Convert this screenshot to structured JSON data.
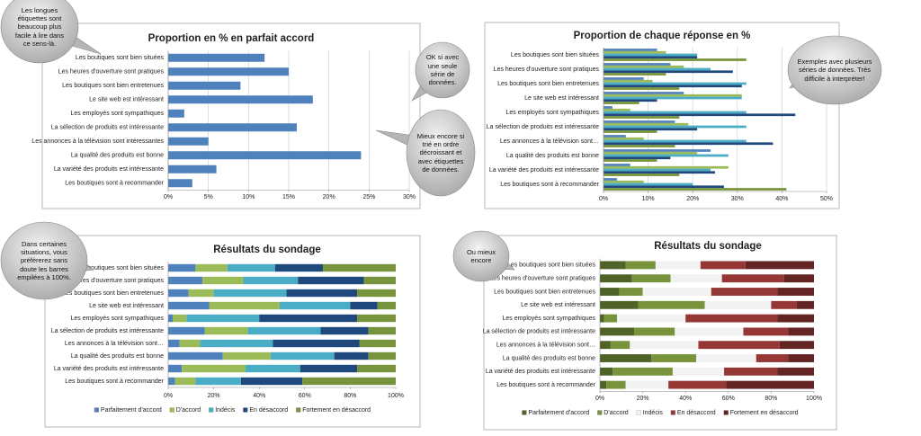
{
  "chart_data": [
    {
      "type": "bar",
      "title": "Proportion en % en parfait accord",
      "categories": [
        "Les boutiques sont bien situées",
        "Les heures d'ouverture sont pratiques",
        "Les boutiques sont bien entretenues",
        "Le site web est intéressant",
        "Les employés sont sympathiques",
        "La sélection de produits est intéressante",
        "Les annonces à la télévision sont intéressantes",
        "La qualité des produits est bonne",
        "La variété des produits est intéressante",
        "Les boutiques sont à recommander"
      ],
      "values": [
        12,
        15,
        9,
        18,
        2,
        16,
        5,
        24,
        6,
        3
      ],
      "color": "#4f81bd",
      "xlim": [
        0,
        30
      ],
      "xticks": [
        {
          "value": 0,
          "label": "0%"
        },
        {
          "value": 5,
          "label": "5%"
        },
        {
          "value": 10,
          "label": "10%"
        },
        {
          "value": 15,
          "label": "15%"
        },
        {
          "value": 20,
          "label": "20%"
        },
        {
          "value": 25,
          "label": "25%"
        },
        {
          "value": 30,
          "label": "30%"
        }
      ],
      "grid": true,
      "annotations": [
        "Les longues étiquettes sont beaucoup plus facile à lire dans ce sens-là.",
        "OK si avec une seule série de données.",
        "Mieux encore si trié en ordre décroissant et avec étiquettes de données."
      ]
    },
    {
      "type": "grouped_bar",
      "title": "Proportion de chaque réponse en %",
      "categories": [
        "Les boutiques sont bien situées",
        "Les heures d'ouverture sont pratiques",
        "Les boutiques sont bien entretenues",
        "Le site web est intéressant",
        "Les employés sont sympathiques",
        "La sélection de produits est intéressante",
        "Les annonces à la télévision sont…",
        "La qualité des produits est bonne",
        "La variété des produits est intéressante",
        "Les boutiques sont à recommander"
      ],
      "series": [
        {
          "name": "Parfaitement d'accord",
          "color": "#4f81bd",
          "values": [
            12,
            15,
            9,
            18,
            2,
            16,
            5,
            24,
            6,
            3
          ]
        },
        {
          "name": "D'accord",
          "color": "#9bbb59",
          "values": [
            14,
            18,
            11,
            31,
            6,
            19,
            9,
            21,
            28,
            9
          ]
        },
        {
          "name": "Indécis",
          "color": "#4bacc6",
          "values": [
            21,
            24,
            32,
            31,
            32,
            32,
            32,
            28,
            24,
            20
          ]
        },
        {
          "name": "En désaccord",
          "color": "#1f497d",
          "values": [
            21,
            29,
            31,
            12,
            43,
            21,
            38,
            15,
            25,
            27
          ]
        },
        {
          "name": "Fortement en désaccord",
          "color": "#77933c",
          "values": [
            32,
            14,
            17,
            8,
            17,
            12,
            16,
            12,
            17,
            41
          ]
        }
      ],
      "xlim": [
        0,
        50
      ],
      "xticks": [
        {
          "value": 0,
          "label": "0%"
        },
        {
          "value": 10,
          "label": "10%"
        },
        {
          "value": 20,
          "label": "20%"
        },
        {
          "value": 30,
          "label": "30%"
        },
        {
          "value": 40,
          "label": "40%"
        },
        {
          "value": 50,
          "label": "50%"
        }
      ],
      "grid": true,
      "annotations": [
        "Exemples avec plusieurs séries de données. Très difficile à interpréter!"
      ]
    },
    {
      "type": "stacked_bar",
      "title": "Résultats du sondage",
      "categories": [
        "Les boutiques sont bien situées",
        "Les heures d'ouverture sont pratiques",
        "Les boutiques sont bien entretenues",
        "Le site web est intéressant",
        "Les employés sont sympathiques",
        "La sélection de produits est intéressante",
        "Les annonces à la télévision sont…",
        "La qualité des produits est bonne",
        "La variété des produits est intéressante",
        "Les boutiques sont à recommander"
      ],
      "series": [
        {
          "name": "Parfaitement d'accord",
          "color": "#4f81bd",
          "values": [
            12,
            15,
            9,
            18,
            2,
            16,
            5,
            24,
            6,
            3
          ]
        },
        {
          "name": "D'accord",
          "color": "#9bbb59",
          "values": [
            14,
            18,
            11,
            31,
            6,
            19,
            9,
            21,
            28,
            9
          ]
        },
        {
          "name": "Indécis",
          "color": "#4bacc6",
          "values": [
            21,
            24,
            32,
            31,
            32,
            32,
            32,
            28,
            24,
            20
          ]
        },
        {
          "name": "En désaccord",
          "color": "#1f497d",
          "values": [
            21,
            29,
            31,
            12,
            43,
            21,
            38,
            15,
            25,
            27
          ]
        },
        {
          "name": "Fortement en désaccord",
          "color": "#77933c",
          "values": [
            32,
            14,
            17,
            8,
            17,
            12,
            16,
            12,
            17,
            41
          ]
        }
      ],
      "xlim": [
        0,
        100
      ],
      "xticks": [
        {
          "value": 0,
          "label": "0%"
        },
        {
          "value": 20,
          "label": "20%"
        },
        {
          "value": 40,
          "label": "40%"
        },
        {
          "value": 60,
          "label": "60%"
        },
        {
          "value": 80,
          "label": "80%"
        },
        {
          "value": 100,
          "label": "100%"
        }
      ],
      "grid": false,
      "legend": "bottom",
      "annotations": [
        "Dans certaines situations, vous préférerez sans doute les barres empilées à 100%."
      ]
    },
    {
      "type": "stacked_bar",
      "title": "Résultats du sondage",
      "categories": [
        "Les boutiques sont bien situées",
        "Les heures d'ouverture sont pratiques",
        "Les boutiques sont bien entretenues",
        "Le site web est intéressant",
        "Les employés sont sympathiques",
        "La sélection de produits est intéressante",
        "Les annonces à la télévision sont…",
        "La qualité des produits est bonne",
        "La variété des produits est intéressante",
        "Les boutiques sont à recommander"
      ],
      "series": [
        {
          "name": "Parfaitement d'accord",
          "color": "#4f6228",
          "values": [
            12,
            15,
            9,
            18,
            2,
            16,
            5,
            24,
            6,
            3
          ]
        },
        {
          "name": "D'accord",
          "color": "#77933c",
          "values": [
            14,
            18,
            11,
            31,
            6,
            19,
            9,
            21,
            28,
            9
          ]
        },
        {
          "name": "Indécis",
          "color": "#f2f2f2",
          "values": [
            21,
            24,
            32,
            31,
            32,
            32,
            32,
            28,
            24,
            20
          ]
        },
        {
          "name": "En désaccord",
          "color": "#953735",
          "values": [
            21,
            29,
            31,
            12,
            43,
            21,
            38,
            15,
            25,
            27
          ]
        },
        {
          "name": "Fortement en désaccord",
          "color": "#632423",
          "values": [
            32,
            14,
            17,
            8,
            17,
            12,
            16,
            12,
            17,
            41
          ]
        }
      ],
      "xlim": [
        0,
        100
      ],
      "xticks": [
        {
          "value": 0,
          "label": "0%"
        },
        {
          "value": 20,
          "label": "20%"
        },
        {
          "value": 40,
          "label": "40%"
        },
        {
          "value": 60,
          "label": "60%"
        },
        {
          "value": 80,
          "label": "80%"
        },
        {
          "value": 100,
          "label": "100%"
        }
      ],
      "grid": false,
      "legend": "bottom",
      "annotations": [
        "Ou mieux encore"
      ]
    }
  ]
}
